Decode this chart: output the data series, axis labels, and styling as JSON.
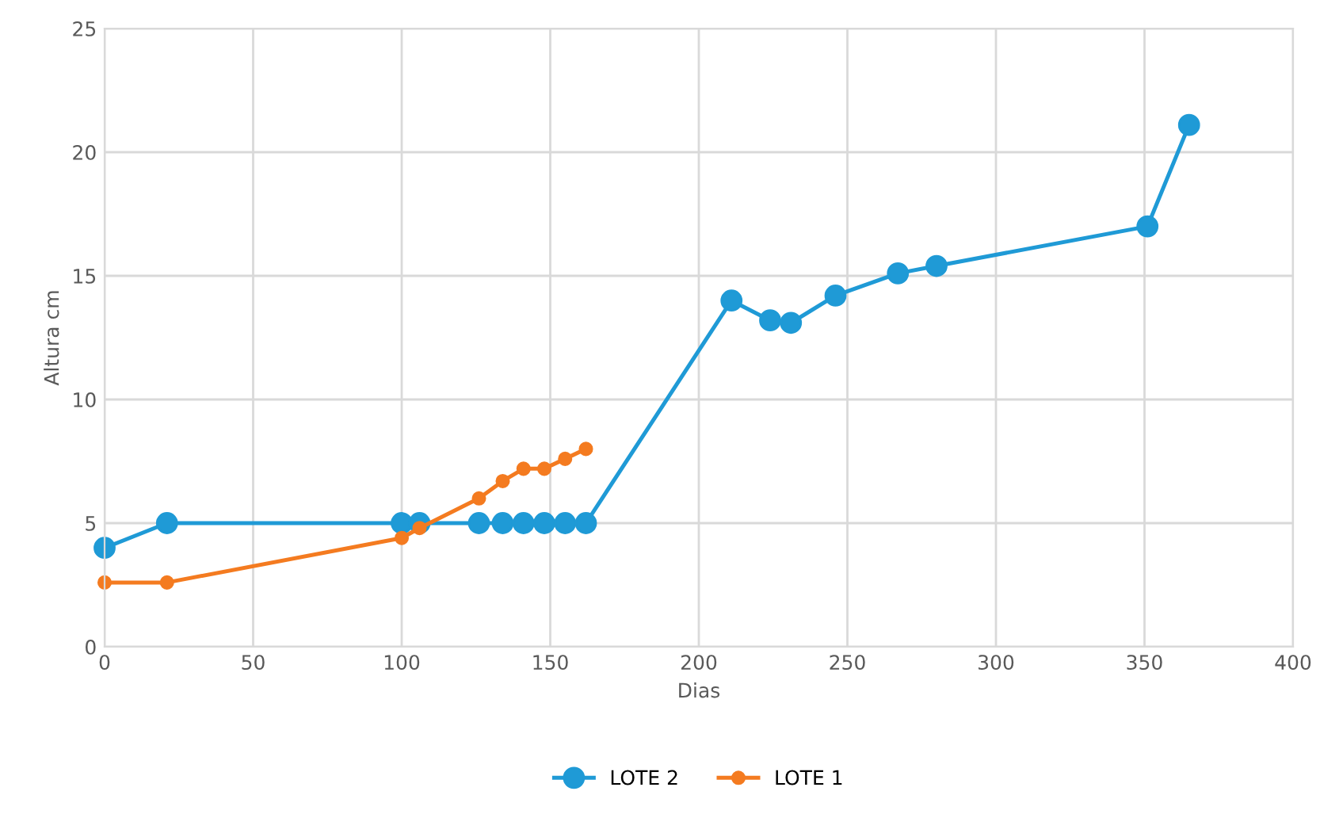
{
  "chart_data": {
    "type": "line",
    "xlabel": "Dias",
    "ylabel": "Altura cm",
    "xlim": [
      0,
      400
    ],
    "xticks": [
      0,
      50,
      100,
      150,
      200,
      250,
      300,
      350,
      400
    ],
    "ylim": [
      0,
      25
    ],
    "yticks": [
      0,
      5,
      10,
      15,
      20,
      25
    ],
    "grid": true,
    "legend": "bottom",
    "marker": "circle",
    "line_style": "solid",
    "series": [
      {
        "name": "LOTE 2",
        "color": "#1f9ad6",
        "x": [
          0,
          21,
          100,
          106,
          126,
          134,
          141,
          148,
          155,
          162,
          211,
          224,
          231,
          246,
          267,
          280,
          351,
          365
        ],
        "values": [
          4.0,
          5.0,
          5.0,
          5.0,
          5.0,
          5.0,
          5.0,
          5.0,
          5.0,
          5.0,
          14.0,
          13.2,
          13.1,
          14.2,
          15.1,
          15.4,
          17.0,
          21.1
        ]
      },
      {
        "name": "LOTE 1",
        "color": "#f47b20",
        "x": [
          0,
          21,
          100,
          106,
          126,
          134,
          141,
          148,
          155,
          162
        ],
        "values": [
          2.6,
          2.6,
          4.4,
          4.8,
          6.0,
          6.7,
          7.2,
          7.2,
          7.6,
          8.0
        ]
      }
    ]
  }
}
